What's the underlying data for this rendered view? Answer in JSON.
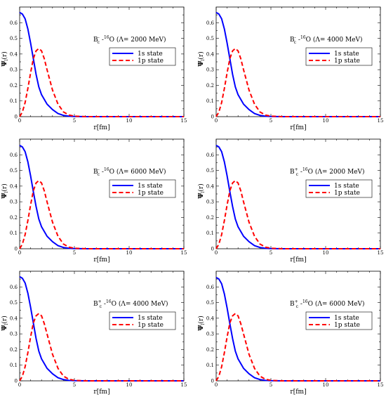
{
  "figure": {
    "x_axis_label": "r[fm]",
    "y_axis_label_main": "Ψ",
    "y_axis_label_sub": "l",
    "y_axis_label_tail": "(r)"
  },
  "chart_data": [
    {
      "type": "line",
      "annotation": {
        "particle": "B",
        "sup": "-",
        "sub": "c",
        "nuc_sup": "16",
        "rest": "O (Λ= 2000 MeV)",
        "dash": "-"
      },
      "xlabel": "r[fm]",
      "ylabel": "Ψl(r)",
      "xlim": [
        0,
        15
      ],
      "ylim": [
        0,
        0.7
      ],
      "xticks": [
        0,
        5,
        10,
        15
      ],
      "yticks": [
        0,
        0.1,
        0.2,
        0.3,
        0.4,
        0.5,
        0.6
      ],
      "legend_position": "upper-right",
      "series": [
        {
          "name": "1s state",
          "color": "#0000ff",
          "dash": "solid",
          "x": [
            0,
            0.25,
            0.5,
            0.75,
            1.0,
            1.25,
            1.5,
            1.75,
            2.0,
            2.5,
            3.0,
            3.5,
            4.0,
            4.5,
            5.0,
            6.0,
            8.0,
            10.0,
            15.0
          ],
          "y": [
            0.665,
            0.655,
            0.625,
            0.56,
            0.47,
            0.37,
            0.27,
            0.19,
            0.14,
            0.08,
            0.045,
            0.02,
            0.008,
            0.003,
            0.001,
            0,
            0,
            0,
            0
          ]
        },
        {
          "name": "1p state",
          "color": "#ff0000",
          "dash": "dashed",
          "x": [
            0,
            0.25,
            0.5,
            0.75,
            1.0,
            1.25,
            1.5,
            1.75,
            2.0,
            2.25,
            2.5,
            3.0,
            3.5,
            4.0,
            4.5,
            5.0,
            6.0,
            8.0,
            15.0
          ],
          "y": [
            0,
            0.03,
            0.09,
            0.18,
            0.28,
            0.37,
            0.42,
            0.435,
            0.42,
            0.37,
            0.3,
            0.17,
            0.08,
            0.03,
            0.01,
            0.003,
            0,
            0,
            0
          ]
        }
      ]
    },
    {
      "type": "line",
      "annotation": {
        "particle": "B",
        "sup": "-",
        "sub": "c",
        "nuc_sup": "16",
        "rest": "O (Λ= 4000 MeV)",
        "dash": "-"
      },
      "xlabel": "r[fm]",
      "ylabel": "Ψl(r)",
      "xlim": [
        0,
        15
      ],
      "ylim": [
        0,
        0.7
      ],
      "xticks": [
        0,
        5,
        10,
        15
      ],
      "yticks": [
        0,
        0.1,
        0.2,
        0.3,
        0.4,
        0.5,
        0.6
      ],
      "legend_position": "upper-right",
      "series": [
        {
          "name": "1s state",
          "color": "#0000ff",
          "dash": "solid",
          "x": [
            0,
            0.25,
            0.5,
            0.75,
            1.0,
            1.25,
            1.5,
            1.75,
            2.0,
            2.5,
            3.0,
            3.5,
            4.0,
            4.5,
            5.0,
            6.0,
            8.0,
            10.0,
            15.0
          ],
          "y": [
            0.665,
            0.655,
            0.625,
            0.56,
            0.47,
            0.37,
            0.27,
            0.19,
            0.14,
            0.08,
            0.045,
            0.02,
            0.008,
            0.003,
            0.001,
            0,
            0,
            0,
            0
          ]
        },
        {
          "name": "1p state",
          "color": "#ff0000",
          "dash": "dashed",
          "x": [
            0,
            0.25,
            0.5,
            0.75,
            1.0,
            1.25,
            1.5,
            1.75,
            2.0,
            2.25,
            2.5,
            3.0,
            3.5,
            4.0,
            4.5,
            5.0,
            6.0,
            8.0,
            15.0
          ],
          "y": [
            0,
            0.03,
            0.09,
            0.18,
            0.28,
            0.37,
            0.42,
            0.435,
            0.42,
            0.37,
            0.3,
            0.17,
            0.08,
            0.03,
            0.01,
            0.003,
            0,
            0,
            0
          ]
        }
      ]
    },
    {
      "type": "line",
      "annotation": {
        "particle": "B",
        "sup": "-",
        "sub": "c",
        "nuc_sup": "16",
        "rest": "O (Λ= 6000 MeV)",
        "dash": "-"
      },
      "xlabel": "r[fm]",
      "ylabel": "Ψl(r)",
      "xlim": [
        0,
        15
      ],
      "ylim": [
        0,
        0.7
      ],
      "xticks": [
        0,
        5,
        10,
        15
      ],
      "yticks": [
        0,
        0.1,
        0.2,
        0.3,
        0.4,
        0.5,
        0.6
      ],
      "legend_position": "upper-right",
      "series": [
        {
          "name": "1s state",
          "color": "#0000ff",
          "dash": "solid",
          "x": [
            0,
            0.25,
            0.5,
            0.75,
            1.0,
            1.25,
            1.5,
            1.75,
            2.0,
            2.5,
            3.0,
            3.5,
            4.0,
            4.5,
            5.0,
            6.0,
            8.0,
            10.0,
            15.0
          ],
          "y": [
            0.66,
            0.65,
            0.62,
            0.555,
            0.465,
            0.365,
            0.27,
            0.19,
            0.14,
            0.08,
            0.045,
            0.02,
            0.008,
            0.003,
            0.001,
            0,
            0,
            0,
            0
          ]
        },
        {
          "name": "1p state",
          "color": "#ff0000",
          "dash": "dashed",
          "x": [
            0,
            0.25,
            0.5,
            0.75,
            1.0,
            1.25,
            1.5,
            1.75,
            2.0,
            2.25,
            2.5,
            3.0,
            3.5,
            4.0,
            4.5,
            5.0,
            6.0,
            8.0,
            15.0
          ],
          "y": [
            0,
            0.03,
            0.09,
            0.18,
            0.28,
            0.37,
            0.42,
            0.435,
            0.42,
            0.37,
            0.3,
            0.17,
            0.08,
            0.03,
            0.01,
            0.003,
            0,
            0,
            0
          ]
        }
      ]
    },
    {
      "type": "line",
      "annotation": {
        "particle": "B",
        "sup": "+",
        "sub": "c",
        "nuc_sup": "16",
        "rest": "O (Λ= 2000 MeV)",
        "dash": "-"
      },
      "xlabel": "r[fm]",
      "ylabel": "Ψl(r)",
      "xlim": [
        0,
        15
      ],
      "ylim": [
        0,
        0.7
      ],
      "xticks": [
        0,
        5,
        10,
        15
      ],
      "yticks": [
        0,
        0.1,
        0.2,
        0.3,
        0.4,
        0.5,
        0.6
      ],
      "legend_position": "upper-right",
      "series": [
        {
          "name": "1s state",
          "color": "#0000ff",
          "dash": "solid",
          "x": [
            0,
            0.25,
            0.5,
            0.75,
            1.0,
            1.25,
            1.5,
            1.75,
            2.0,
            2.5,
            3.0,
            3.5,
            4.0,
            4.5,
            5.0,
            6.0,
            8.0,
            10.0,
            15.0
          ],
          "y": [
            0.66,
            0.65,
            0.62,
            0.555,
            0.465,
            0.365,
            0.27,
            0.19,
            0.14,
            0.08,
            0.045,
            0.02,
            0.008,
            0.003,
            0.001,
            0,
            0,
            0,
            0
          ]
        },
        {
          "name": "1p state",
          "color": "#ff0000",
          "dash": "dashed",
          "x": [
            0,
            0.25,
            0.5,
            0.75,
            1.0,
            1.25,
            1.5,
            1.75,
            2.0,
            2.25,
            2.5,
            3.0,
            3.5,
            4.0,
            4.5,
            5.0,
            6.0,
            8.0,
            15.0
          ],
          "y": [
            0,
            0.03,
            0.09,
            0.18,
            0.28,
            0.37,
            0.42,
            0.435,
            0.42,
            0.37,
            0.3,
            0.17,
            0.08,
            0.03,
            0.01,
            0.003,
            0,
            0,
            0
          ]
        }
      ]
    },
    {
      "type": "line",
      "annotation": {
        "particle": "B",
        "sup": "+",
        "sub": "c",
        "nuc_sup": "16",
        "rest": "O (Λ= 4000 MeV)",
        "dash": "-"
      },
      "xlabel": "r[fm]",
      "ylabel": "Ψl(r)",
      "xlim": [
        0,
        15
      ],
      "ylim": [
        0,
        0.7
      ],
      "xticks": [
        0,
        5,
        10,
        15
      ],
      "yticks": [
        0,
        0.1,
        0.2,
        0.3,
        0.4,
        0.5,
        0.6
      ],
      "legend_position": "upper-right",
      "series": [
        {
          "name": "1s state",
          "color": "#0000ff",
          "dash": "solid",
          "x": [
            0,
            0.25,
            0.5,
            0.75,
            1.0,
            1.25,
            1.5,
            1.75,
            2.0,
            2.5,
            3.0,
            3.5,
            4.0,
            4.5,
            5.0,
            6.0,
            8.0,
            10.0,
            15.0
          ],
          "y": [
            0.665,
            0.655,
            0.625,
            0.56,
            0.47,
            0.37,
            0.27,
            0.19,
            0.14,
            0.08,
            0.045,
            0.02,
            0.008,
            0.003,
            0.001,
            0,
            0,
            0,
            0
          ]
        },
        {
          "name": "1p state",
          "color": "#ff0000",
          "dash": "dashed",
          "x": [
            0,
            0.25,
            0.5,
            0.75,
            1.0,
            1.25,
            1.5,
            1.75,
            2.0,
            2.25,
            2.5,
            3.0,
            3.5,
            4.0,
            4.5,
            5.0,
            6.0,
            8.0,
            15.0
          ],
          "y": [
            0,
            0.03,
            0.09,
            0.18,
            0.28,
            0.37,
            0.415,
            0.43,
            0.415,
            0.365,
            0.3,
            0.17,
            0.08,
            0.03,
            0.01,
            0.003,
            0,
            0,
            0
          ]
        }
      ]
    },
    {
      "type": "line",
      "annotation": {
        "particle": "B",
        "sup": "+",
        "sub": "c",
        "nuc_sup": "16",
        "rest": "O (Λ= 6000 MeV)",
        "dash": "-"
      },
      "xlabel": "r[fm]",
      "ylabel": "Ψl(r)",
      "xlim": [
        0,
        15
      ],
      "ylim": [
        0,
        0.7
      ],
      "xticks": [
        0,
        5,
        10,
        15
      ],
      "yticks": [
        0,
        0.1,
        0.2,
        0.3,
        0.4,
        0.5,
        0.6
      ],
      "legend_position": "upper-right",
      "series": [
        {
          "name": "1s state",
          "color": "#0000ff",
          "dash": "solid",
          "x": [
            0,
            0.25,
            0.5,
            0.75,
            1.0,
            1.25,
            1.5,
            1.75,
            2.0,
            2.5,
            3.0,
            3.5,
            4.0,
            4.5,
            5.0,
            6.0,
            8.0,
            10.0,
            15.0
          ],
          "y": [
            0.66,
            0.65,
            0.62,
            0.555,
            0.465,
            0.365,
            0.27,
            0.19,
            0.14,
            0.08,
            0.045,
            0.02,
            0.008,
            0.003,
            0.001,
            0,
            0,
            0,
            0
          ]
        },
        {
          "name": "1p state",
          "color": "#ff0000",
          "dash": "dashed",
          "x": [
            0,
            0.25,
            0.5,
            0.75,
            1.0,
            1.25,
            1.5,
            1.75,
            2.0,
            2.25,
            2.5,
            3.0,
            3.5,
            4.0,
            4.5,
            5.0,
            6.0,
            8.0,
            15.0
          ],
          "y": [
            0,
            0.03,
            0.09,
            0.18,
            0.28,
            0.37,
            0.415,
            0.43,
            0.415,
            0.365,
            0.3,
            0.17,
            0.08,
            0.03,
            0.01,
            0.003,
            0,
            0,
            0
          ]
        }
      ]
    }
  ]
}
